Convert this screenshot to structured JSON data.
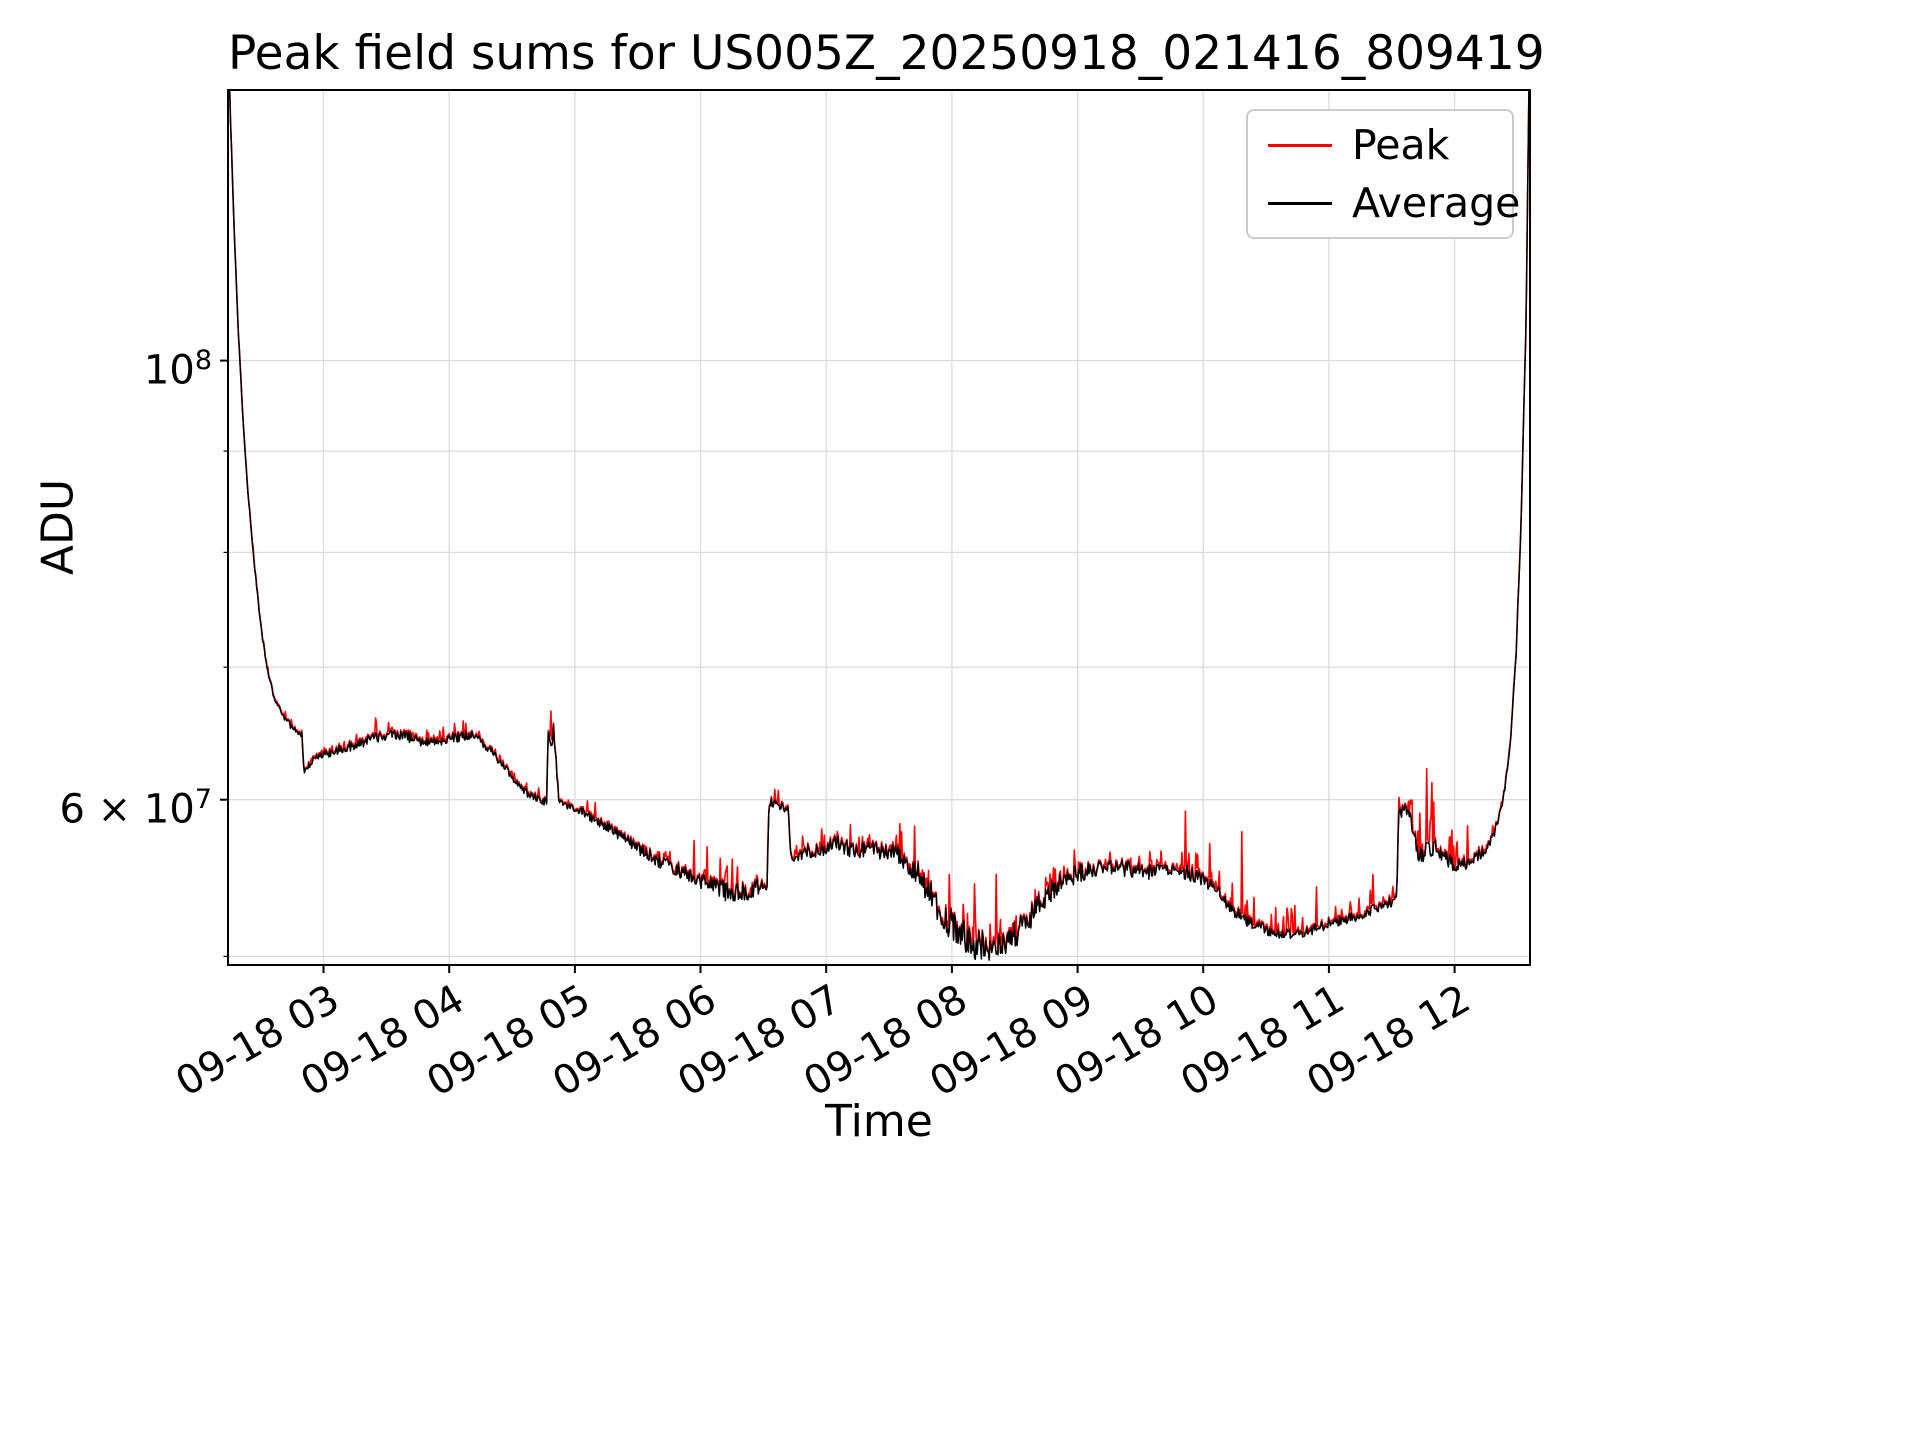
{
  "chart_data": {
    "type": "line",
    "title": "Peak field sums for US005Z_20250918_021416_809419",
    "xlabel": "Time",
    "ylabel": "ADU",
    "yscale": "log",
    "grid": true,
    "legend_position": "upper right",
    "xlim": [
      2.24,
      12.6
    ],
    "ylim": [
      49500000,
      137000000
    ],
    "value_unit": 10000000,
    "samples": 1500,
    "seed": 42,
    "grid_color": "#dcdcdc",
    "axis_color": "#000000",
    "xticks": [
      {
        "value": 3,
        "label": "09-18 03"
      },
      {
        "value": 4,
        "label": "09-18 04"
      },
      {
        "value": 5,
        "label": "09-18 05"
      },
      {
        "value": 6,
        "label": "09-18 06"
      },
      {
        "value": 7,
        "label": "09-18 07"
      },
      {
        "value": 8,
        "label": "09-18 08"
      },
      {
        "value": 9,
        "label": "09-18 09"
      },
      {
        "value": 10,
        "label": "09-18 10"
      },
      {
        "value": 11,
        "label": "09-18 11"
      },
      {
        "value": 12,
        "label": "09-18 12"
      }
    ],
    "yticks_major": [
      {
        "value": 100000000,
        "label_prefix": "",
        "label_base": "10",
        "label_exp": "8"
      },
      {
        "value": 60000000,
        "label_prefix": "6 × ",
        "label_base": "10",
        "label_exp": "7"
      }
    ],
    "yticks_minor": [
      50000000,
      70000000,
      80000000,
      90000000
    ],
    "series": [
      {
        "name": "Peak",
        "color": "#ff0000"
      },
      {
        "name": "Average",
        "color": "#000000"
      }
    ],
    "average_keypoints": [
      [
        2.24,
        14.8
      ],
      [
        2.26,
        13.2
      ],
      [
        2.29,
        11.6
      ],
      [
        2.32,
        10.4
      ],
      [
        2.36,
        9.3
      ],
      [
        2.4,
        8.55
      ],
      [
        2.44,
        8.0
      ],
      [
        2.48,
        7.55
      ],
      [
        2.52,
        7.2
      ],
      [
        2.56,
        6.95
      ],
      [
        2.6,
        6.78
      ],
      [
        2.65,
        6.66
      ],
      [
        2.7,
        6.58
      ],
      [
        2.75,
        6.53
      ],
      [
        2.8,
        6.49
      ],
      [
        2.83,
        6.47
      ],
      [
        2.845,
        6.18
      ],
      [
        2.87,
        6.24
      ],
      [
        2.92,
        6.28
      ],
      [
        3.0,
        6.32
      ],
      [
        3.1,
        6.35
      ],
      [
        3.2,
        6.38
      ],
      [
        3.3,
        6.41
      ],
      [
        3.42,
        6.45
      ],
      [
        3.55,
        6.48
      ],
      [
        3.65,
        6.46
      ],
      [
        3.75,
        6.43
      ],
      [
        3.85,
        6.41
      ],
      [
        3.95,
        6.43
      ],
      [
        4.05,
        6.45
      ],
      [
        4.17,
        6.47
      ],
      [
        4.28,
        6.4
      ],
      [
        4.4,
        6.28
      ],
      [
        4.52,
        6.14
      ],
      [
        4.62,
        6.05
      ],
      [
        4.72,
        5.99
      ],
      [
        4.775,
        5.98
      ],
      [
        4.79,
        6.52
      ],
      [
        4.815,
        6.35
      ],
      [
        4.83,
        6.52
      ],
      [
        4.855,
        6.22
      ],
      [
        4.87,
        6.0
      ],
      [
        4.95,
        5.96
      ],
      [
        5.05,
        5.92
      ],
      [
        5.16,
        5.86
      ],
      [
        5.28,
        5.8
      ],
      [
        5.4,
        5.73
      ],
      [
        5.52,
        5.66
      ],
      [
        5.64,
        5.6
      ],
      [
        5.76,
        5.55
      ],
      [
        5.88,
        5.5
      ],
      [
        6.0,
        5.46
      ],
      [
        6.12,
        5.42
      ],
      [
        6.22,
        5.39
      ],
      [
        6.32,
        5.38
      ],
      [
        6.42,
        5.4
      ],
      [
        6.5,
        5.42
      ],
      [
        6.53,
        5.44
      ],
      [
        6.545,
        5.98
      ],
      [
        6.6,
        5.97
      ],
      [
        6.66,
        5.95
      ],
      [
        6.7,
        5.93
      ],
      [
        6.715,
        5.62
      ],
      [
        6.78,
        5.63
      ],
      [
        6.86,
        5.65
      ],
      [
        6.95,
        5.66
      ],
      [
        7.03,
        5.69
      ],
      [
        7.07,
        5.71
      ],
      [
        7.12,
        5.68
      ],
      [
        7.2,
        5.66
      ],
      [
        7.3,
        5.66
      ],
      [
        7.4,
        5.66
      ],
      [
        7.5,
        5.65
      ],
      [
        7.58,
        5.63
      ],
      [
        7.66,
        5.57
      ],
      [
        7.74,
        5.48
      ],
      [
        7.82,
        5.38
      ],
      [
        7.9,
        5.28
      ],
      [
        7.98,
        5.2
      ],
      [
        8.06,
        5.14
      ],
      [
        8.14,
        5.09
      ],
      [
        8.22,
        5.06
      ],
      [
        8.3,
        5.05
      ],
      [
        8.38,
        5.06
      ],
      [
        8.46,
        5.1
      ],
      [
        8.54,
        5.16
      ],
      [
        8.62,
        5.24
      ],
      [
        8.7,
        5.32
      ],
      [
        8.78,
        5.39
      ],
      [
        8.86,
        5.44
      ],
      [
        8.94,
        5.48
      ],
      [
        9.02,
        5.51
      ],
      [
        9.12,
        5.53
      ],
      [
        9.22,
        5.54
      ],
      [
        9.32,
        5.54
      ],
      [
        9.42,
        5.53
      ],
      [
        9.52,
        5.52
      ],
      [
        9.62,
        5.52
      ],
      [
        9.72,
        5.53
      ],
      [
        9.82,
        5.52
      ],
      [
        9.92,
        5.5
      ],
      [
        10.0,
        5.47
      ],
      [
        10.08,
        5.42
      ],
      [
        10.16,
        5.35
      ],
      [
        10.24,
        5.28
      ],
      [
        10.32,
        5.22
      ],
      [
        10.42,
        5.18
      ],
      [
        10.52,
        5.15
      ],
      [
        10.62,
        5.13
      ],
      [
        10.72,
        5.13
      ],
      [
        10.82,
        5.14
      ],
      [
        10.92,
        5.17
      ],
      [
        11.02,
        5.2
      ],
      [
        11.12,
        5.22
      ],
      [
        11.22,
        5.24
      ],
      [
        11.32,
        5.27
      ],
      [
        11.42,
        5.3
      ],
      [
        11.5,
        5.33
      ],
      [
        11.54,
        5.36
      ],
      [
        11.555,
        5.9
      ],
      [
        11.6,
        5.93
      ],
      [
        11.64,
        5.88
      ],
      [
        11.68,
        5.78
      ],
      [
        11.705,
        5.62
      ],
      [
        11.75,
        5.64
      ],
      [
        11.8,
        5.68
      ],
      [
        11.85,
        5.66
      ],
      [
        11.9,
        5.62
      ],
      [
        11.96,
        5.58
      ],
      [
        12.02,
        5.55
      ],
      [
        12.08,
        5.57
      ],
      [
        12.14,
        5.6
      ],
      [
        12.2,
        5.63
      ],
      [
        12.26,
        5.68
      ],
      [
        12.32,
        5.78
      ],
      [
        12.38,
        5.95
      ],
      [
        12.44,
        6.35
      ],
      [
        12.49,
        7.1
      ],
      [
        12.53,
        8.3
      ],
      [
        12.57,
        10.5
      ],
      [
        12.6,
        15.0
      ]
    ],
    "peak_spike_envelope": [
      [
        2.24,
        0.003
      ],
      [
        2.8,
        0.008
      ],
      [
        3.0,
        0.015
      ],
      [
        3.3,
        0.02
      ],
      [
        3.6,
        0.02
      ],
      [
        3.9,
        0.018
      ],
      [
        4.2,
        0.015
      ],
      [
        4.5,
        0.01
      ],
      [
        4.8,
        0.012
      ],
      [
        5.1,
        0.018
      ],
      [
        5.4,
        0.02
      ],
      [
        5.7,
        0.025
      ],
      [
        6.0,
        0.035
      ],
      [
        6.2,
        0.04
      ],
      [
        6.4,
        0.035
      ],
      [
        6.55,
        0.015
      ],
      [
        6.7,
        0.02
      ],
      [
        6.9,
        0.03
      ],
      [
        7.1,
        0.025
      ],
      [
        7.3,
        0.035
      ],
      [
        7.5,
        0.04
      ],
      [
        7.7,
        0.045
      ],
      [
        7.9,
        0.06
      ],
      [
        8.1,
        0.065
      ],
      [
        8.3,
        0.055
      ],
      [
        8.5,
        0.04
      ],
      [
        8.7,
        0.03
      ],
      [
        8.9,
        0.025
      ],
      [
        9.1,
        0.02
      ],
      [
        9.3,
        0.025
      ],
      [
        9.5,
        0.035
      ],
      [
        9.7,
        0.04
      ],
      [
        9.85,
        0.07
      ],
      [
        10.0,
        0.045
      ],
      [
        10.15,
        0.05
      ],
      [
        10.3,
        0.055
      ],
      [
        10.5,
        0.045
      ],
      [
        10.7,
        0.04
      ],
      [
        10.9,
        0.04
      ],
      [
        11.1,
        0.045
      ],
      [
        11.3,
        0.04
      ],
      [
        11.5,
        0.03
      ],
      [
        11.65,
        0.05
      ],
      [
        11.8,
        0.09
      ],
      [
        11.9,
        0.06
      ],
      [
        12.0,
        0.045
      ],
      [
        12.1,
        0.035
      ],
      [
        12.2,
        0.025
      ],
      [
        12.35,
        0.012
      ],
      [
        12.5,
        0.004
      ],
      [
        12.6,
        0.003
      ]
    ],
    "average_roughness": [
      [
        2.24,
        0.0015
      ],
      [
        2.8,
        0.004
      ],
      [
        3.2,
        0.006
      ],
      [
        3.8,
        0.006
      ],
      [
        4.4,
        0.005
      ],
      [
        4.9,
        0.005
      ],
      [
        5.4,
        0.006
      ],
      [
        5.9,
        0.009
      ],
      [
        6.2,
        0.012
      ],
      [
        6.45,
        0.012
      ],
      [
        6.6,
        0.004
      ],
      [
        6.8,
        0.008
      ],
      [
        7.1,
        0.009
      ],
      [
        7.4,
        0.01
      ],
      [
        7.7,
        0.014
      ],
      [
        8.0,
        0.018
      ],
      [
        8.3,
        0.018
      ],
      [
        8.6,
        0.016
      ],
      [
        8.9,
        0.012
      ],
      [
        9.2,
        0.01
      ],
      [
        9.5,
        0.01
      ],
      [
        9.8,
        0.009
      ],
      [
        10.1,
        0.008
      ],
      [
        10.4,
        0.007
      ],
      [
        10.7,
        0.006
      ],
      [
        11.0,
        0.006
      ],
      [
        11.3,
        0.006
      ],
      [
        11.55,
        0.006
      ],
      [
        11.8,
        0.012
      ],
      [
        12.0,
        0.009
      ],
      [
        12.2,
        0.007
      ],
      [
        12.4,
        0.004
      ],
      [
        12.6,
        0.002
      ]
    ],
    "peak_spikes": [
      [
        4.81,
        6.65
      ],
      [
        5.16,
        5.98
      ],
      [
        5.95,
        5.72
      ],
      [
        6.05,
        5.68
      ],
      [
        6.25,
        5.6
      ],
      [
        7.6,
        5.78
      ],
      [
        7.98,
        5.5
      ],
      [
        8.18,
        5.44
      ],
      [
        8.35,
        5.5
      ],
      [
        9.86,
        5.92
      ],
      [
        10.05,
        5.7
      ],
      [
        10.31,
        5.78
      ],
      [
        10.9,
        5.42
      ],
      [
        11.35,
        5.5
      ],
      [
        11.78,
        6.22
      ],
      [
        11.82,
        6.12
      ],
      [
        12.1,
        5.82
      ]
    ]
  }
}
